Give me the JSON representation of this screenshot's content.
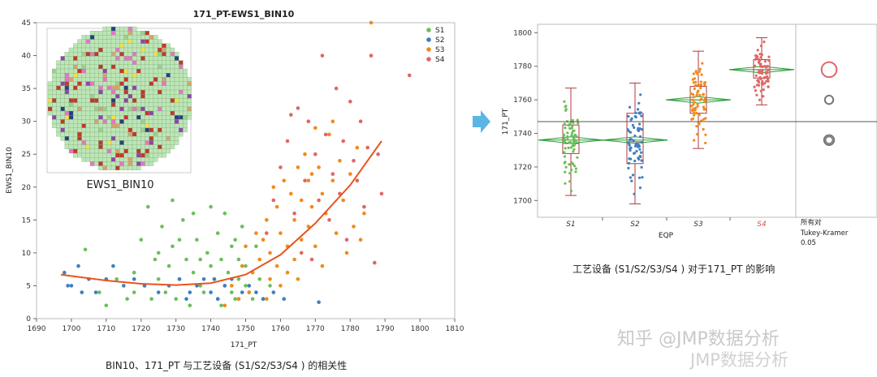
{
  "chart_data": [
    {
      "type": "scatter",
      "title": "171_PT-EWS1_BIN10",
      "xlabel": "171_PT",
      "ylabel": "EWS1_BIN10",
      "xlim": [
        1690,
        1810
      ],
      "ylim": [
        0,
        45
      ],
      "xticks": [
        "1690",
        "1700",
        "1710",
        "1720",
        "1730",
        "1740",
        "1750",
        "1760",
        "1770",
        "1780",
        "1790",
        "1800",
        "1810"
      ],
      "yticks": [
        "0",
        "5",
        "10",
        "15",
        "20",
        "25",
        "30",
        "35",
        "40",
        "45"
      ],
      "legend_position": "top-right",
      "colors": {
        "S1": "#6bbf59",
        "S2": "#3f7fbf",
        "S3": "#f08a1c",
        "S4": "#e06666",
        "fit": "#e8541e"
      },
      "series": [
        {
          "name": "S1",
          "points": [
            [
              1704,
              10.5
            ],
            [
              1708,
              4
            ],
            [
              1710,
              2
            ],
            [
              1713,
              6
            ],
            [
              1716,
              3
            ],
            [
              1718,
              7
            ],
            [
              1720,
              12
            ],
            [
              1721,
              5
            ],
            [
              1723,
              3
            ],
            [
              1724,
              9
            ],
            [
              1725,
              6
            ],
            [
              1726,
              14
            ],
            [
              1727,
              4
            ],
            [
              1728,
              8
            ],
            [
              1729,
              11
            ],
            [
              1730,
              3
            ],
            [
              1731,
              6
            ],
            [
              1732,
              15
            ],
            [
              1733,
              9
            ],
            [
              1734,
              2
            ],
            [
              1735,
              7
            ],
            [
              1736,
              12
            ],
            [
              1737,
              5
            ],
            [
              1738,
              4
            ],
            [
              1739,
              10
            ],
            [
              1740,
              8
            ],
            [
              1740,
              17
            ],
            [
              1741,
              6
            ],
            [
              1742,
              3
            ],
            [
              1742,
              13
            ],
            [
              1743,
              9
            ],
            [
              1744,
              5
            ],
            [
              1744,
              16
            ],
            [
              1745,
              7
            ],
            [
              1746,
              11
            ],
            [
              1746,
              4
            ],
            [
              1747,
              3
            ],
            [
              1748,
              9
            ],
            [
              1748,
              6
            ],
            [
              1749,
              14
            ],
            [
              1750,
              5
            ],
            [
              1750,
              8
            ],
            [
              1751,
              4
            ],
            [
              1752,
              7
            ],
            [
              1753,
              11
            ],
            [
              1754,
              6
            ],
            [
              1755,
              3
            ],
            [
              1757,
              5
            ],
            [
              1722,
              17
            ],
            [
              1729,
              18
            ],
            [
              1735,
              16
            ],
            [
              1725,
              10
            ],
            [
              1718,
              4
            ],
            [
              1731,
              12
            ],
            [
              1737,
              9
            ],
            [
              1743,
              2
            ],
            [
              1747,
              12
            ],
            [
              1752,
              3
            ]
          ]
        },
        {
          "name": "S2",
          "points": [
            [
              1698,
              7
            ],
            [
              1700,
              5
            ],
            [
              1702,
              8
            ],
            [
              1705,
              6
            ],
            [
              1707,
              4
            ],
            [
              1710,
              6
            ],
            [
              1712,
              8
            ],
            [
              1715,
              5
            ],
            [
              1718,
              6
            ],
            [
              1721,
              5
            ],
            [
              1725,
              4
            ],
            [
              1728,
              5
            ],
            [
              1731,
              6
            ],
            [
              1734,
              4
            ],
            [
              1736,
              5
            ],
            [
              1738,
              6
            ],
            [
              1740,
              4
            ],
            [
              1742,
              3
            ],
            [
              1744,
              5
            ],
            [
              1746,
              6
            ],
            [
              1748,
              3
            ],
            [
              1749,
              4
            ],
            [
              1751,
              5
            ],
            [
              1753,
              4
            ],
            [
              1755,
              3
            ],
            [
              1758,
              4
            ],
            [
              1761,
              3
            ],
            [
              1771,
              2.5
            ],
            [
              1699,
              5
            ],
            [
              1703,
              4
            ],
            [
              1733,
              3
            ],
            [
              1741,
              6
            ]
          ]
        },
        {
          "name": "S3",
          "points": [
            [
              1744,
              2
            ],
            [
              1746,
              5
            ],
            [
              1748,
              3
            ],
            [
              1749,
              8
            ],
            [
              1750,
              11
            ],
            [
              1751,
              4
            ],
            [
              1752,
              7
            ],
            [
              1753,
              13
            ],
            [
              1754,
              9
            ],
            [
              1755,
              12
            ],
            [
              1756,
              15
            ],
            [
              1757,
              10
            ],
            [
              1757,
              6
            ],
            [
              1758,
              20
            ],
            [
              1759,
              17
            ],
            [
              1759,
              8
            ],
            [
              1760,
              13
            ],
            [
              1761,
              21
            ],
            [
              1762,
              11
            ],
            [
              1762,
              7
            ],
            [
              1763,
              19
            ],
            [
              1764,
              15
            ],
            [
              1764,
              9
            ],
            [
              1765,
              23
            ],
            [
              1766,
              18
            ],
            [
              1766,
              12
            ],
            [
              1767,
              25
            ],
            [
              1768,
              21
            ],
            [
              1768,
              14
            ],
            [
              1769,
              17
            ],
            [
              1770,
              29
            ],
            [
              1770,
              11
            ],
            [
              1771,
              23
            ],
            [
              1772,
              19
            ],
            [
              1772,
              8
            ],
            [
              1773,
              16
            ],
            [
              1774,
              28
            ],
            [
              1775,
              21
            ],
            [
              1776,
              13
            ],
            [
              1777,
              24
            ],
            [
              1778,
              18
            ],
            [
              1779,
              10
            ],
            [
              1780,
              22
            ],
            [
              1781,
              14
            ],
            [
              1782,
              26
            ],
            [
              1784,
              16
            ],
            [
              1786,
              45
            ],
            [
              1783,
              12
            ],
            [
              1760,
              5
            ],
            [
              1765,
              6
            ],
            [
              1769,
              22
            ],
            [
              1775,
              30
            ],
            [
              1756,
              3
            ]
          ]
        },
        {
          "name": "S4",
          "points": [
            [
              1756,
              13
            ],
            [
              1758,
              18
            ],
            [
              1760,
              23
            ],
            [
              1762,
              27
            ],
            [
              1764,
              16
            ],
            [
              1765,
              32
            ],
            [
              1766,
              10
            ],
            [
              1767,
              21
            ],
            [
              1768,
              30
            ],
            [
              1769,
              9
            ],
            [
              1770,
              25
            ],
            [
              1771,
              18
            ],
            [
              1772,
              40
            ],
            [
              1773,
              28
            ],
            [
              1774,
              15
            ],
            [
              1775,
              22
            ],
            [
              1776,
              35
            ],
            [
              1777,
              19
            ],
            [
              1778,
              27
            ],
            [
              1779,
              12
            ],
            [
              1780,
              33
            ],
            [
              1781,
              24
            ],
            [
              1782,
              21
            ],
            [
              1783,
              30
            ],
            [
              1784,
              17
            ],
            [
              1785,
              26
            ],
            [
              1786,
              40
            ],
            [
              1787,
              8.5
            ],
            [
              1788,
              25
            ],
            [
              1789,
              19
            ],
            [
              1797,
              37
            ],
            [
              1763,
              31
            ]
          ]
        }
      ],
      "fit_curve": [
        [
          1697,
          6.7
        ],
        [
          1710,
          5.8
        ],
        [
          1720,
          5.3
        ],
        [
          1730,
          5.1
        ],
        [
          1740,
          5.4
        ],
        [
          1750,
          6.7
        ],
        [
          1760,
          9.7
        ],
        [
          1770,
          14.5
        ],
        [
          1780,
          20.3
        ],
        [
          1789,
          27
        ]
      ],
      "inset_label": "EWS1_BIN10"
    },
    {
      "type": "box",
      "ylabel": "171_PT",
      "xlabel": "EQP",
      "ylim": [
        1690,
        1805
      ],
      "yticks": [
        "1700",
        "1720",
        "1740",
        "1760",
        "1780",
        "1800"
      ],
      "categories": [
        "S1",
        "S2",
        "S3",
        "S4"
      ],
      "overall_mean": 1747,
      "means": [
        1736,
        1736,
        1760,
        1778
      ],
      "boxes": [
        {
          "name": "S1",
          "min": 1703,
          "q1": 1728,
          "median": 1734,
          "q3": 1745,
          "max": 1767
        },
        {
          "name": "S2",
          "min": 1698,
          "q1": 1722,
          "median": 1735,
          "q3": 1752,
          "max": 1770
        },
        {
          "name": "S3",
          "min": 1731,
          "q1": 1752,
          "median": 1760,
          "q3": 1768,
          "max": 1789
        },
        {
          "name": "S4",
          "min": 1757,
          "q1": 1773,
          "median": 1778,
          "q3": 1784,
          "max": 1797
        }
      ],
      "comparison_circles": [
        {
          "center": 1778,
          "radius_units": 4.5,
          "color": "#e06666"
        },
        {
          "center": 1760,
          "radius_units": 2.5,
          "color": "#777777"
        },
        {
          "center": 1736,
          "radius_units": 3,
          "color": "#777777"
        }
      ],
      "side_labels": {
        "line1": "所有对",
        "line2": "Tukey-Kramer",
        "line3": "0.05"
      },
      "highlight_category": "S4"
    }
  ],
  "captions": {
    "left": "BIN10、171_PT 与工艺设备 (S1/S2/S3/S4 ) 的相关性",
    "right": "工艺设备 (S1/S2/S3/S4 ) 对于171_PT 的影响"
  },
  "watermark": {
    "line1": "知乎 @JMP数据分析",
    "line2": "JMP数据分析"
  },
  "arrow_color": "#5bb6e6"
}
